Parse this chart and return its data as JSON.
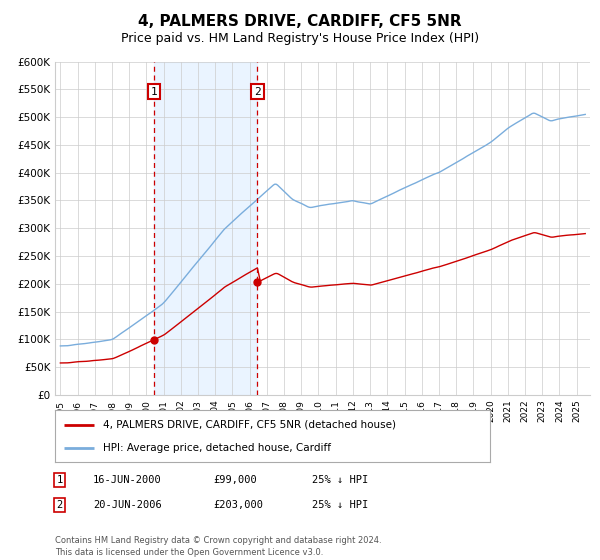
{
  "title": "4, PALMERS DRIVE, CARDIFF, CF5 5NR",
  "subtitle": "Price paid vs. HM Land Registry's House Price Index (HPI)",
  "title_fontsize": 11,
  "subtitle_fontsize": 9,
  "ylim": [
    0,
    600000
  ],
  "yticks": [
    0,
    50000,
    100000,
    150000,
    200000,
    250000,
    300000,
    350000,
    400000,
    450000,
    500000,
    550000,
    600000
  ],
  "ytick_labels": [
    "£0",
    "£50K",
    "£100K",
    "£150K",
    "£200K",
    "£250K",
    "£300K",
    "£350K",
    "£400K",
    "£450K",
    "£500K",
    "£550K",
    "£600K"
  ],
  "hpi_color": "#7aaddc",
  "price_color": "#cc0000",
  "purchase1_year": 2000.46,
  "purchase1_price": 99000,
  "purchase2_year": 2006.46,
  "purchase2_price": 203000,
  "legend_line1": "4, PALMERS DRIVE, CARDIFF, CF5 5NR (detached house)",
  "legend_line2": "HPI: Average price, detached house, Cardiff",
  "note1_label": "1",
  "note1_date": "16-JUN-2000",
  "note1_price": "£99,000",
  "note1_pct": "25% ↓ HPI",
  "note2_label": "2",
  "note2_date": "20-JUN-2006",
  "note2_price": "£203,000",
  "note2_pct": "25% ↓ HPI",
  "footer": "Contains HM Land Registry data © Crown copyright and database right 2024.\nThis data is licensed under the Open Government Licence v3.0.",
  "background_color": "#ffffff",
  "grid_color": "#cccccc",
  "shade_color": "#ddeeff",
  "xmin": 1994.7,
  "xmax": 2025.8
}
